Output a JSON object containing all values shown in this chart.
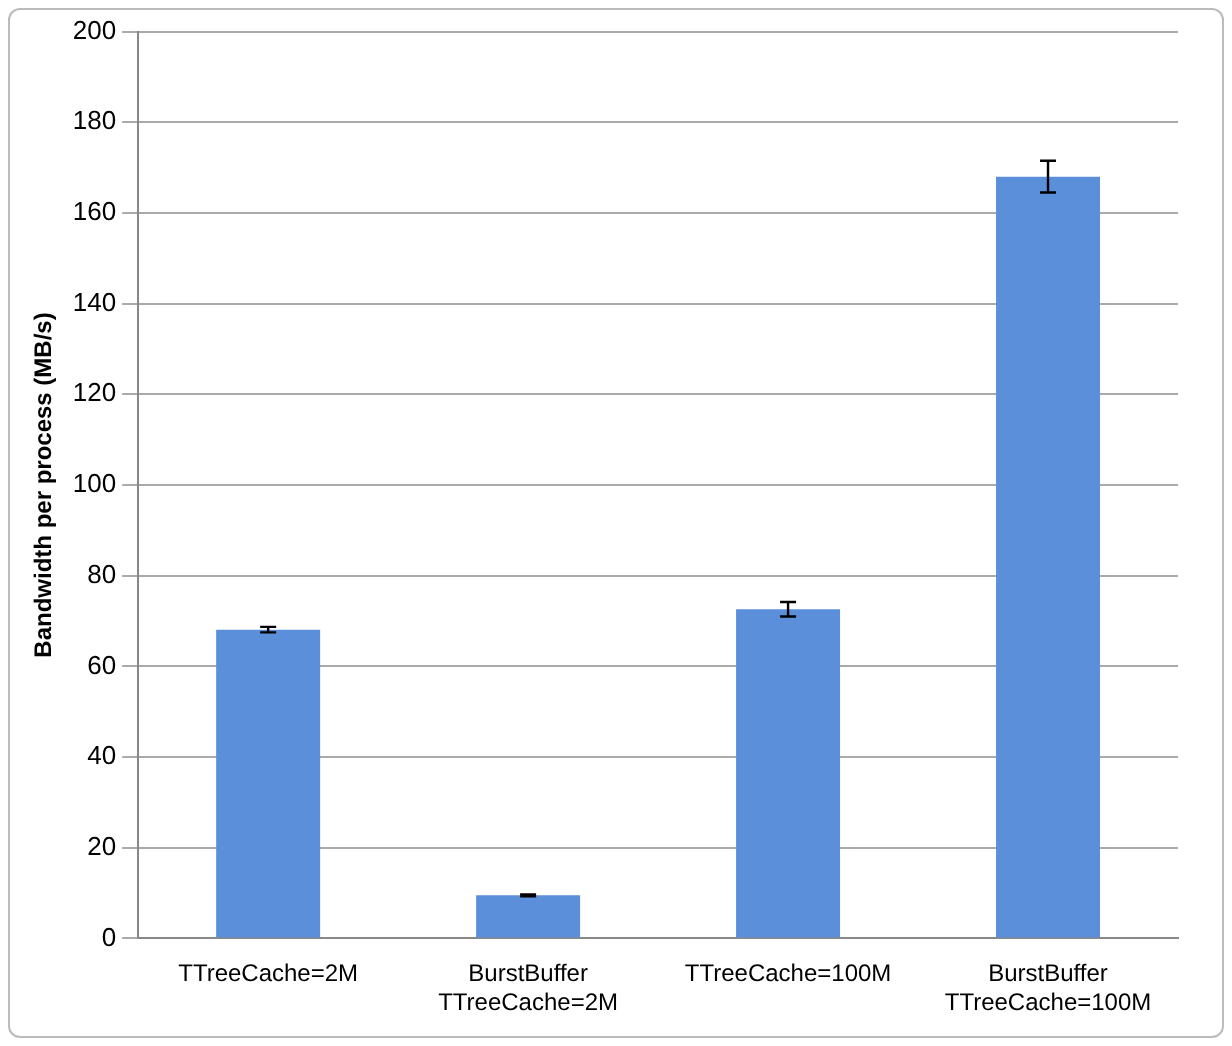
{
  "chart_data": {
    "type": "bar",
    "ylabel": "Bandwidth per process (MB/s)",
    "categories": [
      "TTreeCache=2M",
      "BurstBuffer\nTTreeCache=2M",
      "TTreeCache=100M",
      "BurstBuffer\nTTreeCache=100M"
    ],
    "values": [
      68.1,
      9.5,
      72.6,
      168
    ],
    "errors": [
      0.6,
      0.2,
      1.6,
      3.5
    ],
    "color": "#5b8fd9",
    "ylim": [
      0,
      200
    ],
    "yticks": [
      0,
      20,
      40,
      60,
      80,
      100,
      120,
      140,
      160,
      180,
      200
    ],
    "grid": "y",
    "legend": false
  }
}
